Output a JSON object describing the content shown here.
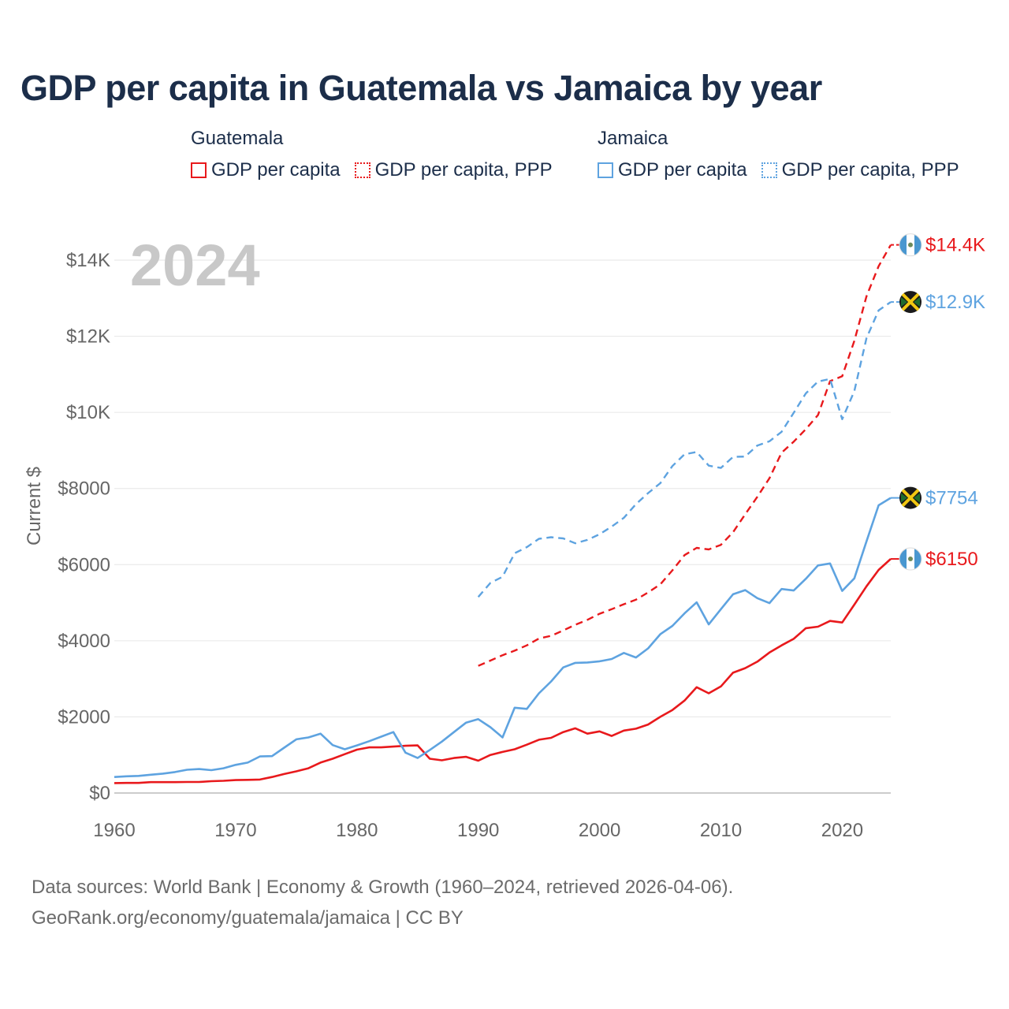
{
  "title": "GDP per capita in Guatemala vs Jamaica by year",
  "legend": {
    "guatemala": {
      "country": "Guatemala",
      "items": [
        "GDP per capita",
        "GDP per capita, PPP"
      ]
    },
    "jamaica": {
      "country": "Jamaica",
      "items": [
        "GDP per capita",
        "GDP per capita, PPP"
      ]
    }
  },
  "colors": {
    "guatemala": "#e8191c",
    "jamaica": "#5ea3e0",
    "title": "#1c2e4a",
    "axis_text": "#666666",
    "year_watermark": "#c8c8c8",
    "grid": "#e6e6e6"
  },
  "year_watermark": "2024",
  "footer": {
    "line1": "Data sources: World Bank | Economy & Growth (1960–2024, retrieved 2026-04-06).",
    "line2": "GeoRank.org/economy/guatemala/jamaica | CC BY"
  },
  "chart_data": {
    "type": "line",
    "title": "GDP per capita in Guatemala vs Jamaica by year",
    "xlabel": "",
    "ylabel": "Current $",
    "xlim": [
      1960,
      2024
    ],
    "ylim": [
      0,
      14500
    ],
    "x_ticks": [
      1960,
      1970,
      1980,
      1990,
      2000,
      2010,
      2020
    ],
    "y_ticks": [
      0,
      2000,
      4000,
      6000,
      8000,
      10000,
      12000,
      14000
    ],
    "y_tick_labels": [
      "$0",
      "$2000",
      "$4000",
      "$6000",
      "$8000",
      "$10K",
      "$12K",
      "$14K"
    ],
    "grid": true,
    "series": [
      {
        "name": "Guatemala GDP per capita",
        "country": "guatemala",
        "style": "solid",
        "end_label": "$6150",
        "start_year": 1960,
        "values": [
          260,
          265,
          265,
          285,
          285,
          285,
          290,
          290,
          310,
          320,
          340,
          345,
          355,
          420,
          500,
          570,
          650,
          800,
          900,
          1020,
          1140,
          1200,
          1200,
          1220,
          1240,
          1250,
          900,
          860,
          920,
          950,
          850,
          1000,
          1080,
          1150,
          1270,
          1400,
          1450,
          1600,
          1700,
          1560,
          1620,
          1500,
          1640,
          1690,
          1800,
          2000,
          2180,
          2430,
          2780,
          2620,
          2800,
          3160,
          3280,
          3450,
          3690,
          3880,
          4050,
          4330,
          4370,
          4520,
          4480,
          4950,
          5430,
          5860,
          6150
        ]
      },
      {
        "name": "Guatemala GDP per capita, PPP",
        "country": "guatemala",
        "style": "dashed",
        "end_label": "$14.4K",
        "start_year": 1990,
        "values": [
          3340,
          3480,
          3620,
          3740,
          3880,
          4060,
          4130,
          4270,
          4420,
          4550,
          4710,
          4830,
          4960,
          5080,
          5270,
          5480,
          5850,
          6250,
          6440,
          6400,
          6520,
          6850,
          7320,
          7780,
          8270,
          8940,
          9230,
          9560,
          9930,
          10820,
          10950,
          11880,
          13050,
          13840,
          14400
        ]
      },
      {
        "name": "Jamaica GDP per capita",
        "country": "jamaica",
        "style": "solid",
        "end_label": "$7754",
        "start_year": 1960,
        "values": [
          420,
          440,
          450,
          480,
          510,
          550,
          610,
          630,
          600,
          650,
          740,
          800,
          960,
          970,
          1190,
          1410,
          1460,
          1560,
          1260,
          1150,
          1250,
          1360,
          1480,
          1600,
          1060,
          920,
          1130,
          1350,
          1600,
          1850,
          1940,
          1730,
          1460,
          2240,
          2210,
          2620,
          2930,
          3300,
          3420,
          3430,
          3460,
          3520,
          3680,
          3560,
          3800,
          4170,
          4390,
          4720,
          5010,
          4430,
          4830,
          5220,
          5330,
          5120,
          4990,
          5360,
          5320,
          5630,
          5980,
          6030,
          5310,
          5640,
          6610,
          7560,
          7754
        ]
      },
      {
        "name": "Jamaica GDP per capita, PPP",
        "country": "jamaica",
        "style": "dashed",
        "end_label": "$12.9K",
        "start_year": 1990,
        "values": [
          5150,
          5520,
          5680,
          6300,
          6460,
          6680,
          6720,
          6690,
          6560,
          6650,
          6800,
          7000,
          7230,
          7590,
          7880,
          8140,
          8590,
          8900,
          8960,
          8600,
          8540,
          8830,
          8840,
          9130,
          9240,
          9490,
          9990,
          10500,
          10810,
          10880,
          9820,
          10560,
          11950,
          12680,
          12900
        ]
      }
    ]
  }
}
